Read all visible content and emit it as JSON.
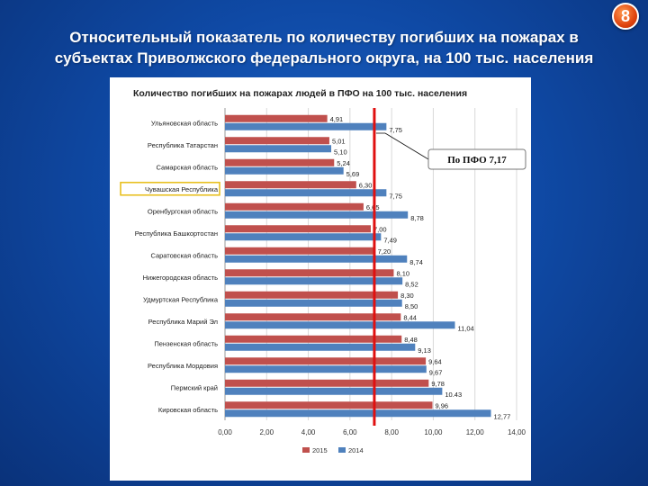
{
  "slide": {
    "number": "8",
    "title_line1": "Относительный показатель по количеству погибших на пожарах в",
    "title_line2": "субъектах Приволжского федерального округа, на 100 тыс. населения"
  },
  "colors": {
    "series_2015": "#c0504d",
    "series_2014": "#4f81bd",
    "average_line": "#e01010",
    "highlight_box": "#e8c020"
  },
  "chart_data": {
    "type": "bar",
    "orientation": "horizontal",
    "title": "Количество погибших на пожарах людей в ПФО на 100 тыс. населения",
    "categories": [
      "Ульяновская область",
      "Республика Татарстан",
      "Самарская область",
      "Чувашская Республика",
      "Оренбургская область",
      "Республика Башкортостан",
      "Саратовская область",
      "Нижегородская область",
      "Удмуртская Республика",
      "Республика Марий Эл",
      "Пензенская область",
      "Республика Мордовия",
      "Пермский край",
      "Кировская область"
    ],
    "highlighted_category": "Чувашская Республика",
    "series": [
      {
        "name": "2015",
        "values": [
          4.91,
          5.01,
          5.24,
          6.3,
          6.65,
          7.0,
          7.2,
          8.1,
          8.3,
          8.44,
          8.48,
          9.64,
          9.78,
          9.96
        ],
        "labels": [
          "4,91",
          "5,01",
          "5,24",
          "6,30",
          "6,65",
          "7,00",
          "7,20",
          "8,10",
          "8,30",
          "8,44",
          "8,48",
          "9,64",
          "9,78",
          "9,96"
        ]
      },
      {
        "name": "2014",
        "values": [
          7.75,
          5.1,
          5.69,
          7.75,
          8.78,
          7.49,
          8.74,
          8.52,
          8.5,
          11.04,
          9.13,
          9.67,
          10.43,
          12.77
        ],
        "labels": [
          "7,75",
          "5,10",
          "5,69",
          "7,75",
          "8,78",
          "7,49",
          "8,74",
          "8,52",
          "8,50",
          "11,04",
          "9,13",
          "9,67",
          "10.43",
          "12,77"
        ]
      }
    ],
    "xlim": [
      0,
      14
    ],
    "xticks": [
      0,
      2,
      4,
      6,
      8,
      10,
      12,
      14
    ],
    "xtick_labels": [
      "0,00",
      "2,00",
      "4,00",
      "6,00",
      "8,00",
      "10,00",
      "12,00",
      "14,00"
    ],
    "grid": "vertical",
    "legend": "bottom",
    "reference_line": {
      "value": 7.17,
      "label": "По ПФО 7,17"
    }
  }
}
